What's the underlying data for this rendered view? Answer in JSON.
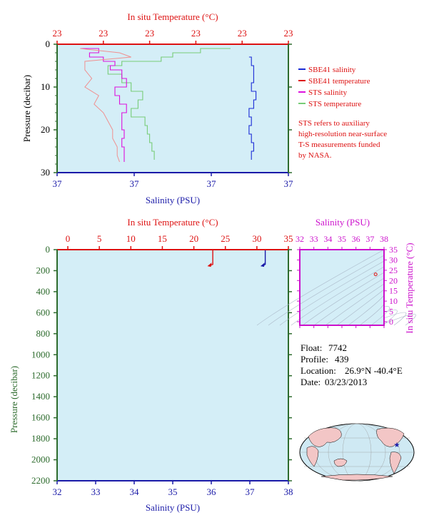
{
  "top_panel": {
    "temp_axis_title": "In situ Temperature (°C)",
    "temp_ticks": [
      "23",
      "23",
      "23",
      "23",
      "23",
      "23"
    ],
    "sal_axis_title": "Salinity (PSU)",
    "sal_ticks": [
      "37",
      "37",
      "37",
      "37"
    ],
    "pressure_title": "Pressure (decibar)",
    "pressure_ticks": [
      "0",
      "10",
      "20",
      "30"
    ],
    "legend": [
      {
        "label": "SBE41 salinity",
        "color": "#1a2bd6"
      },
      {
        "label": "SBE41 temperature",
        "color": "#dd1111"
      },
      {
        "label": "STS salinity",
        "color": "#dd11dd"
      },
      {
        "label": "STS temperature",
        "color": "#77cc77"
      }
    ],
    "note": [
      "STS refers to auxiliary",
      "high-resolution near-surface",
      "T-S measurements funded",
      "by NASA."
    ]
  },
  "bottom_panel": {
    "temp_axis_title": "In situ Temperature (°C)",
    "temp_ticks": [
      "0",
      "5",
      "10",
      "15",
      "20",
      "25",
      "30",
      "35"
    ],
    "sal_axis_title": "Salinity (PSU)",
    "sal_ticks": [
      "32",
      "33",
      "34",
      "35",
      "36",
      "37",
      "38"
    ],
    "pressure_title": "Pressure (decibar)",
    "pressure_ticks": [
      "0",
      "200",
      "400",
      "600",
      "800",
      "1000",
      "1200",
      "1400",
      "1600",
      "1800",
      "2000",
      "2200"
    ]
  },
  "ts_diagram": {
    "sal_title": "Salinity (PSU)",
    "sal_ticks": [
      "32",
      "33",
      "34",
      "35",
      "36",
      "37",
      "38"
    ],
    "temp_title": "In situ Temperature (°C)",
    "temp_ticks": [
      "0",
      "5",
      "10",
      "15",
      "20",
      "25",
      "30",
      "35"
    ]
  },
  "info": {
    "float_label": "Float:",
    "float_value": "7742",
    "profile_label": "Profile:",
    "profile_value": "439",
    "location_label": "Location:",
    "location_value": "26.9°N  -40.4°E",
    "date_label": "Date:",
    "date_value": "03/23/2013"
  },
  "colors": {
    "background_plot": "#d4eef7",
    "axis_temp": "#dd1111",
    "axis_salinity": "#1a1aa8",
    "axis_pressure": "#2d6b2d",
    "ts_axis": "#cc11cc"
  },
  "chart_data": [
    {
      "type": "line",
      "panel": "near-surface",
      "ylim": [
        0,
        30
      ],
      "y_inverted": true,
      "series": [
        {
          "name": "SBE41 salinity",
          "color": "#1a2bd6",
          "pressure": [
            3,
            5,
            7,
            9,
            11,
            13,
            15,
            17,
            19,
            21,
            23,
            25,
            27
          ],
          "value": [
            0.83,
            0.84,
            0.85,
            0.85,
            0.84,
            0.86,
            0.85,
            0.83,
            0.84,
            0.83,
            0.84,
            0.85,
            0.84
          ]
        },
        {
          "name": "SBE41 temperature",
          "color": "#dd1111",
          "pressure": [],
          "value": []
        },
        {
          "name": "STS salinity",
          "color": "#dd11dd",
          "pressure": [
            1,
            2,
            3,
            4,
            5,
            6,
            8,
            10,
            12,
            14,
            16,
            18,
            20,
            22,
            24,
            26,
            27.5
          ],
          "value": [
            0.1,
            0.18,
            0.14,
            0.2,
            0.25,
            0.23,
            0.28,
            0.3,
            0.25,
            0.27,
            0.3,
            0.28,
            0.28,
            0.29,
            0.28,
            0.29,
            0.29
          ]
        },
        {
          "name": "STS temperature",
          "color": "#77cc77",
          "pressure": [
            1,
            2,
            3,
            4,
            5,
            7,
            9,
            11,
            13,
            15,
            17,
            19,
            21,
            23,
            25,
            27
          ],
          "value": [
            0.75,
            0.62,
            0.5,
            0.45,
            0.28,
            0.22,
            0.28,
            0.32,
            0.37,
            0.35,
            0.32,
            0.38,
            0.39,
            0.4,
            0.41,
            0.42
          ]
        }
      ]
    },
    {
      "type": "line",
      "panel": "full-profile",
      "x_temperature_range": [
        0,
        35
      ],
      "x_salinity_range": [
        32,
        38
      ],
      "ylim": [
        0,
        2200
      ],
      "y_inverted": true,
      "series": [
        {
          "name": "SBE41 temperature",
          "color": "#dd1111",
          "pressure": [
            0,
            20,
            60,
            100,
            140,
            150
          ],
          "temperature": [
            23.0,
            23.0,
            23.0,
            23.0,
            23.0,
            22.6
          ]
        },
        {
          "name": "SBE41 salinity",
          "color": "#1a1aa8",
          "pressure": [
            0,
            20,
            60,
            100,
            140,
            150
          ],
          "salinity": [
            37.4,
            37.4,
            37.4,
            37.4,
            37.4,
            37.35
          ]
        }
      ]
    },
    {
      "type": "scatter",
      "panel": "ts-diagram",
      "xlim": [
        32,
        38
      ],
      "ylim": [
        0,
        35
      ],
      "points": [
        {
          "salinity": 37.4,
          "temperature": 23.0
        }
      ]
    }
  ]
}
